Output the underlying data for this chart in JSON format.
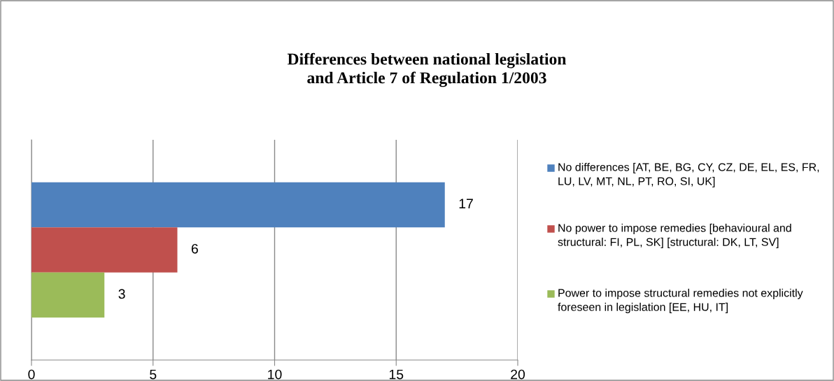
{
  "chart_data": {
    "type": "bar",
    "orientation": "horizontal",
    "title": "Differences between national legislation\nand Article 7 of Regulation 1/2003",
    "categories": [
      null
    ],
    "series": [
      {
        "name": "No differences [AT, BE, BG, CY, CZ, DE, EL, ES, FR, LU, LV, MT, NL, PT, RO, SI, UK]",
        "color": "#4f81bd",
        "values": [
          17
        ]
      },
      {
        "name": "No power to impose remedies [behavioural and structural: FI, PL, SK] [structural: DK, LT, SV]",
        "color": "#c0504d",
        "values": [
          6
        ]
      },
      {
        "name": "Power to impose structural remedies not explicitly foreseen in legislation [EE, HU, IT]",
        "color": "#9bbb59",
        "values": [
          3
        ]
      }
    ],
    "xlim": [
      0,
      20
    ],
    "xticks": [
      0,
      5,
      10,
      15,
      20
    ],
    "grid": "x",
    "data_labels": true,
    "legend": "right"
  }
}
